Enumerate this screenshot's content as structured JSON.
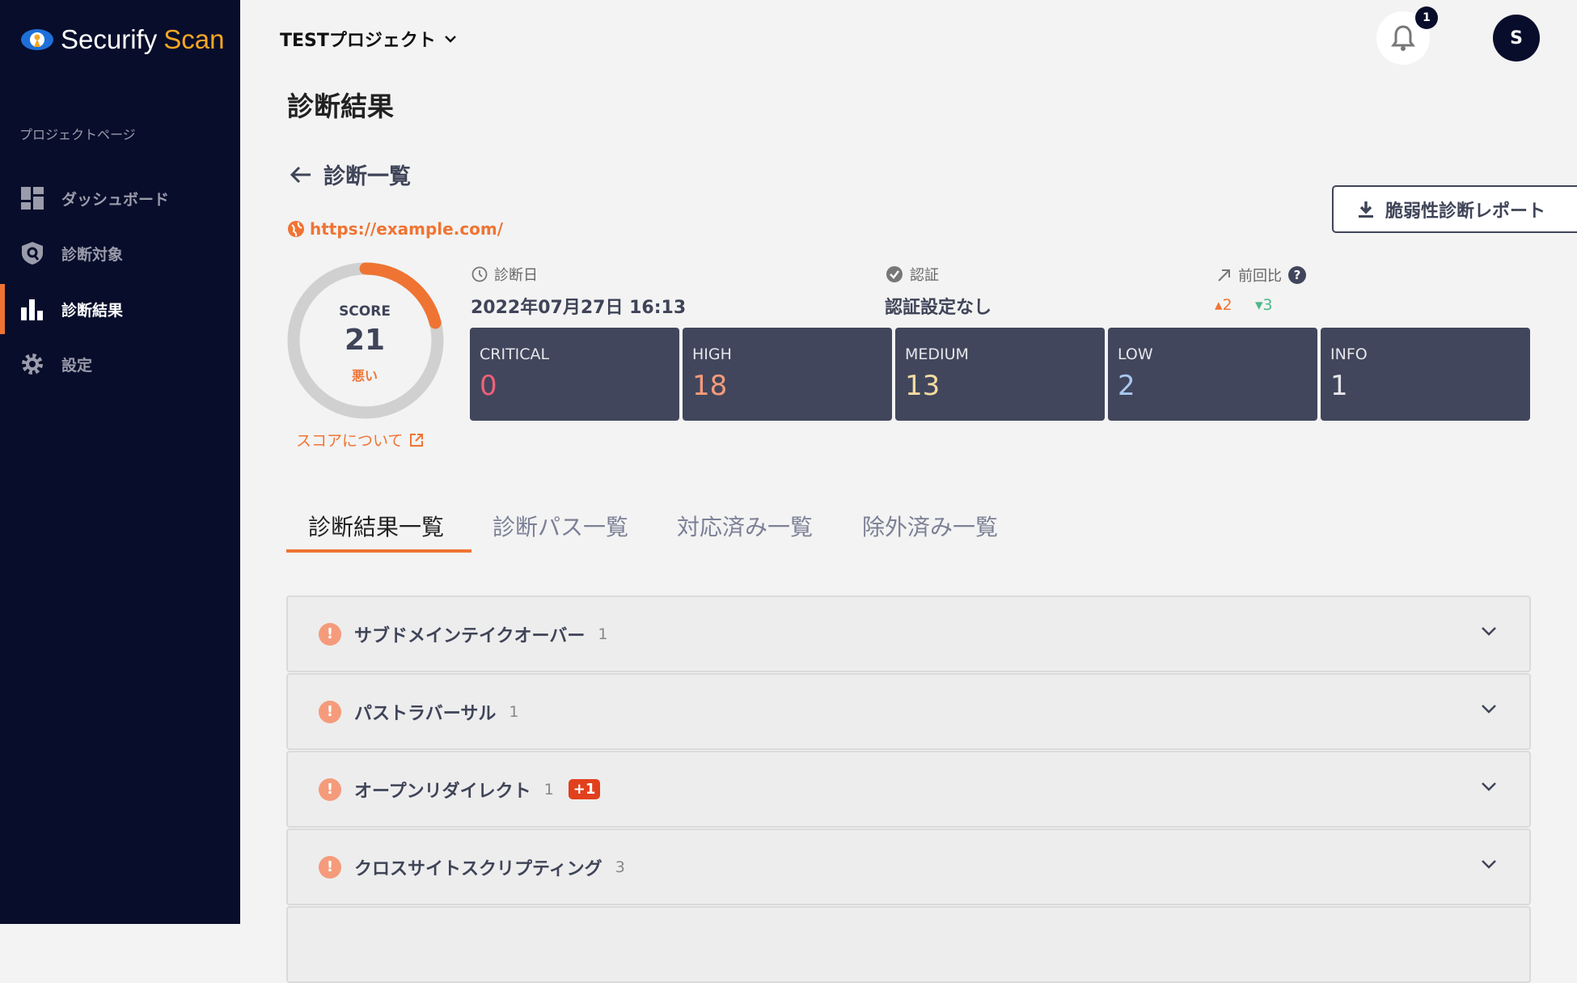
{
  "brand": {
    "name_a": "Securify",
    "name_b": "Scan",
    "accent": "#ef7433"
  },
  "sidebar": {
    "section": "プロジェクトページ",
    "items": [
      {
        "label": "ダッシュボード",
        "icon": "dashboard-icon"
      },
      {
        "label": "診断対象",
        "icon": "shield-search-icon"
      },
      {
        "label": "診断結果",
        "icon": "bar-chart-icon",
        "active": true
      },
      {
        "label": "設定",
        "icon": "gear-icon"
      }
    ]
  },
  "header": {
    "project": "TESTプロジェクト",
    "notifications": "1",
    "avatar": "S"
  },
  "page": {
    "title": "診断結果",
    "back": "診断一覧",
    "report_button": "脆弱性診断レポート",
    "url": "https://example.com/"
  },
  "score": {
    "label": "SCORE",
    "value": "21",
    "percent": 21,
    "rating": "悪い",
    "about": "スコアについて"
  },
  "meta": {
    "date_label": "診断日",
    "date": "2022年07月27日 16:13",
    "auth_label": "認証",
    "auth": "認証設定なし",
    "diff_label": "前回比",
    "up": "2",
    "down": "3"
  },
  "severity": [
    {
      "label": "CRITICAL",
      "value": "0",
      "color": "#f0607a"
    },
    {
      "label": "HIGH",
      "value": "18",
      "color": "#f59b7b"
    },
    {
      "label": "MEDIUM",
      "value": "13",
      "color": "#f5dca0"
    },
    {
      "label": "LOW",
      "value": "2",
      "color": "#a8c8f0"
    },
    {
      "label": "INFO",
      "value": "1",
      "color": "#e6e6ea"
    }
  ],
  "tabs": [
    "診断結果一覧",
    "診断パス一覧",
    "対応済み一覧",
    "除外済み一覧"
  ],
  "results": [
    {
      "name": "サブドメインテイクオーバー",
      "count": "1"
    },
    {
      "name": "パストラバーサル",
      "count": "1"
    },
    {
      "name": "オープンリダイレクト",
      "count": "1",
      "new": "+1"
    },
    {
      "name": "クロスサイトスクリプティング",
      "count": "3"
    }
  ]
}
